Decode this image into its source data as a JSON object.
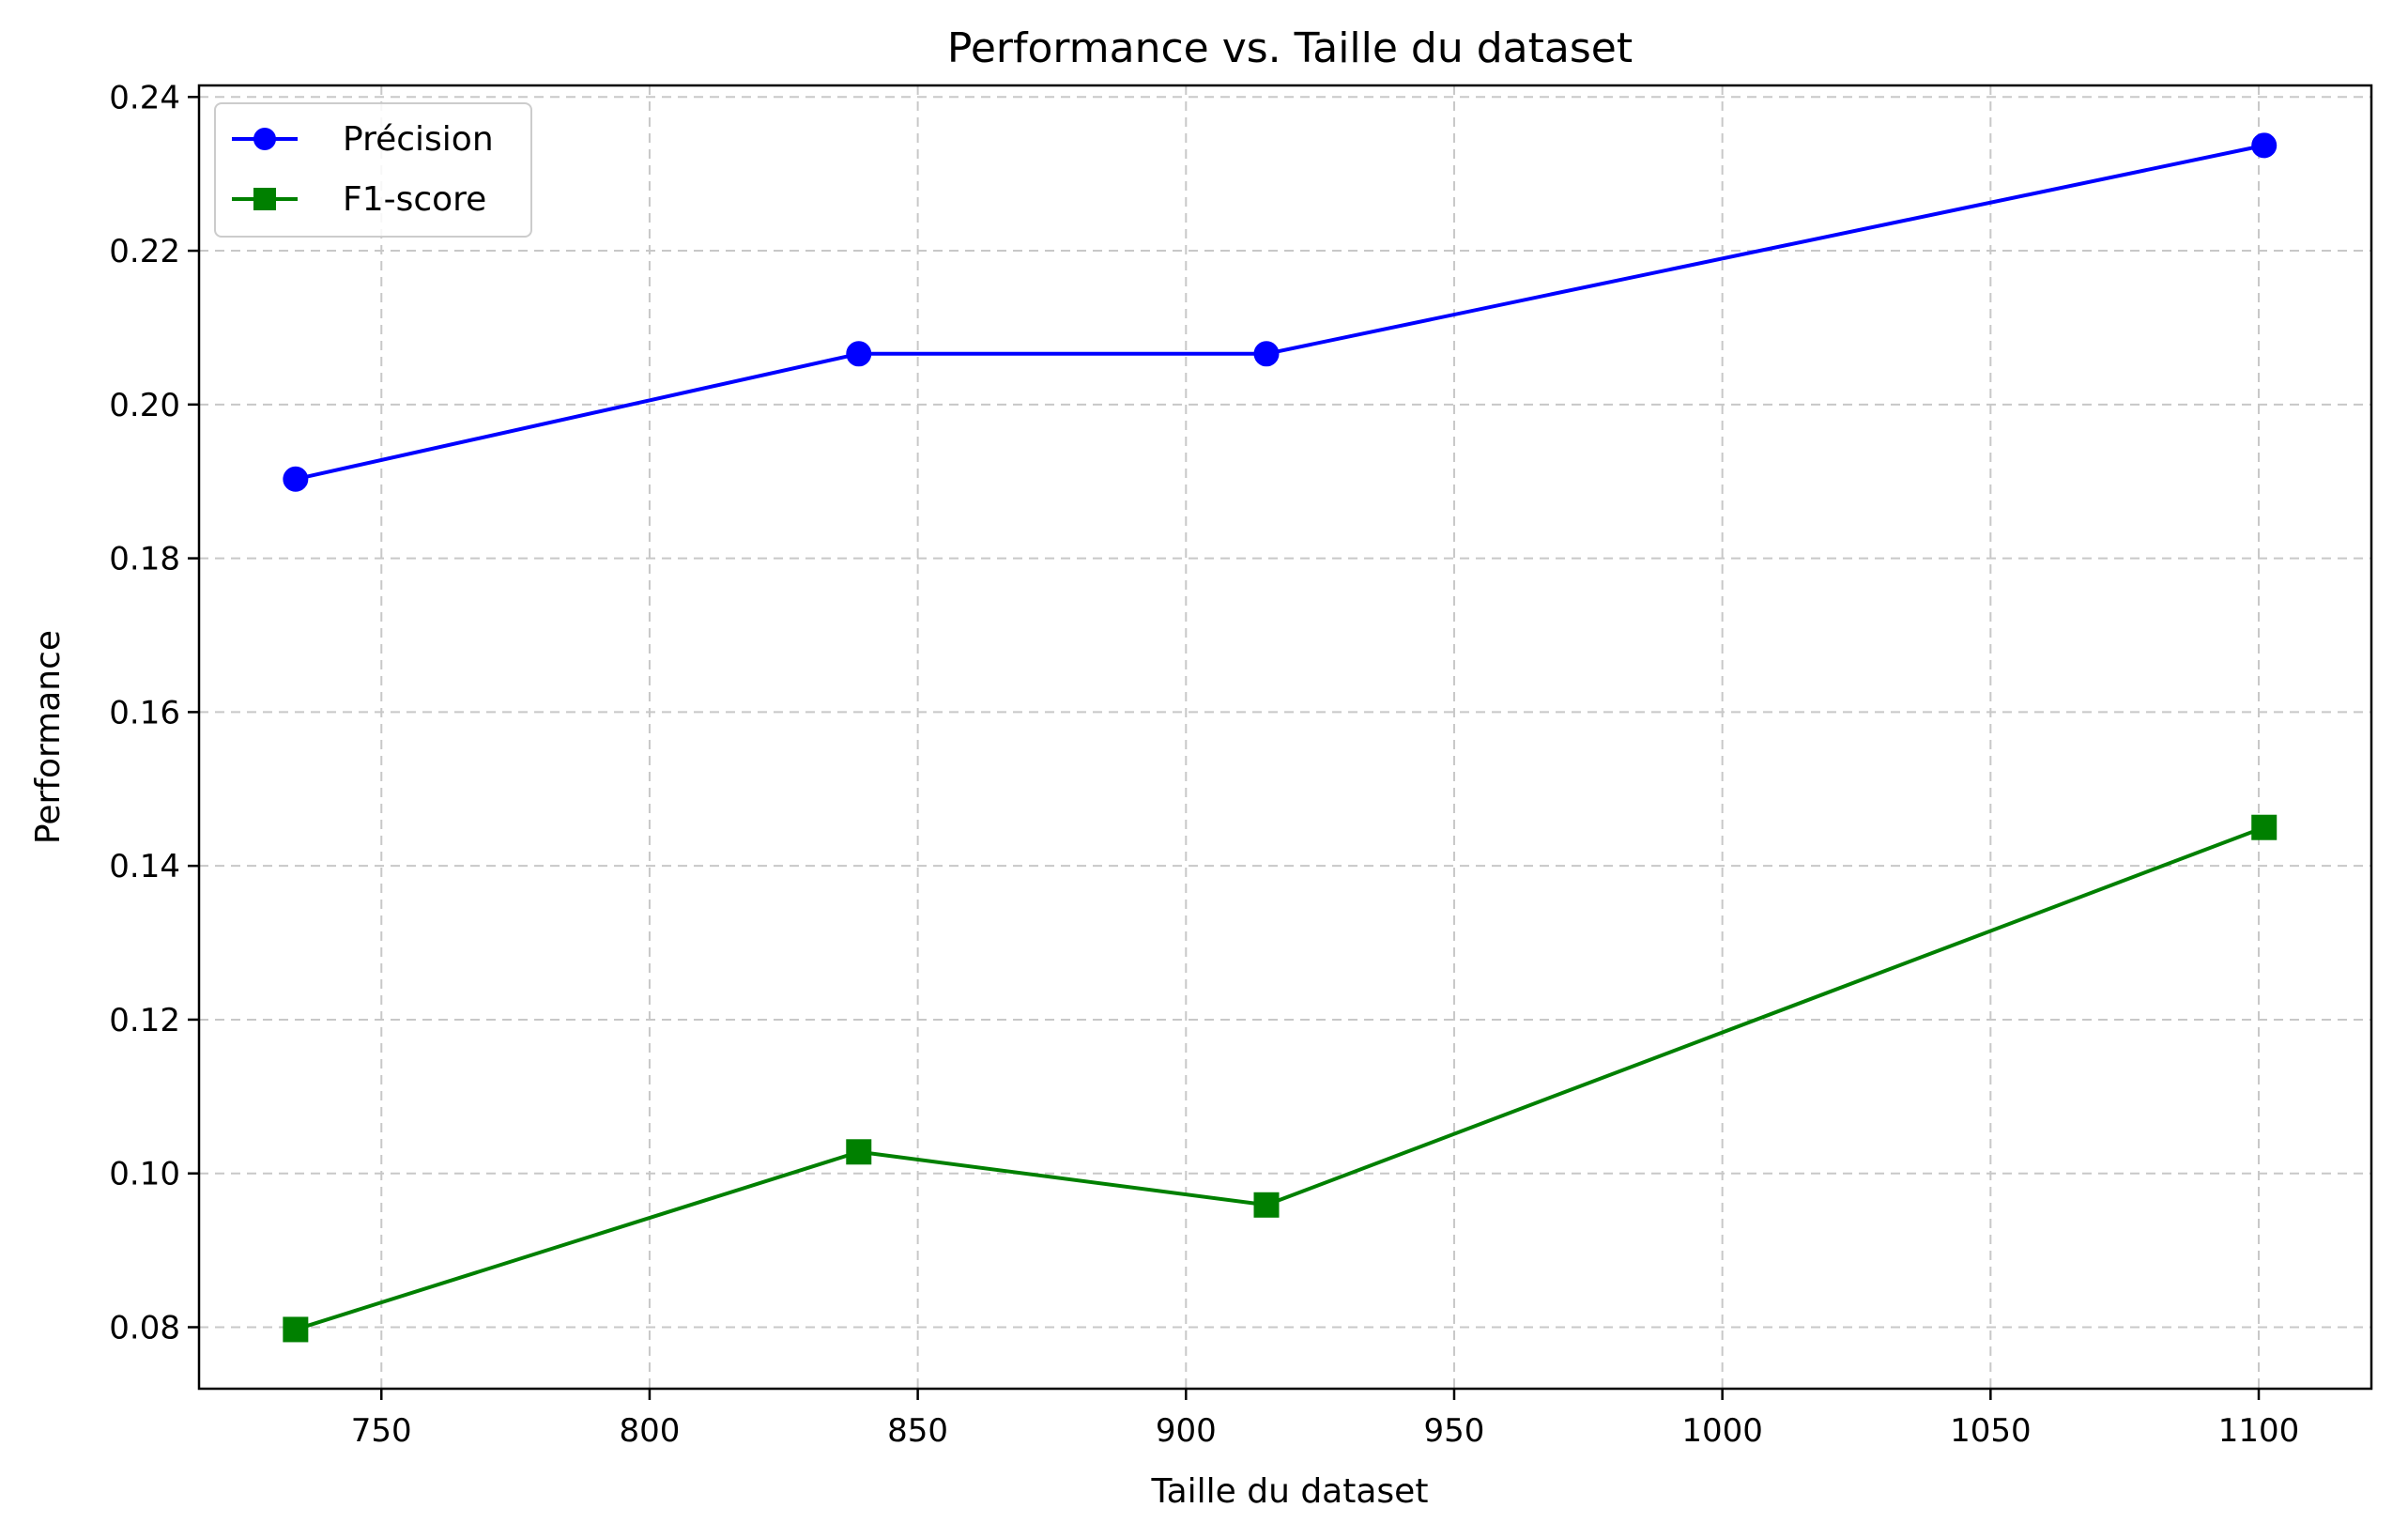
{
  "chart_data": {
    "type": "line",
    "title": "Performance vs. Taille du dataset",
    "xlabel": "Taille du dataset",
    "ylabel": "Performance",
    "xlim": [
      716,
      1121
    ],
    "ylim": [
      0.072,
      0.2415
    ],
    "xticks": [
      750,
      800,
      850,
      900,
      950,
      1000,
      1050,
      1100
    ],
    "yticks": [
      0.08,
      0.1,
      0.12,
      0.14,
      0.16,
      0.18,
      0.2,
      0.22,
      0.24
    ],
    "ytick_labels": [
      "0.08",
      "0.10",
      "0.12",
      "0.14",
      "0.16",
      "0.18",
      "0.20",
      "0.22",
      "0.24"
    ],
    "grid": true,
    "legend_position": "top-left",
    "x": [
      734,
      839,
      915,
      1101
    ],
    "series": [
      {
        "name": "Précision",
        "color": "#0000ff",
        "marker": "circle",
        "values": [
          0.1903,
          0.2066,
          0.2066,
          0.2337
        ]
      },
      {
        "name": "F1-score",
        "color": "#008000",
        "marker": "square",
        "values": [
          0.0797,
          0.1028,
          0.0959,
          0.145
        ]
      }
    ]
  }
}
